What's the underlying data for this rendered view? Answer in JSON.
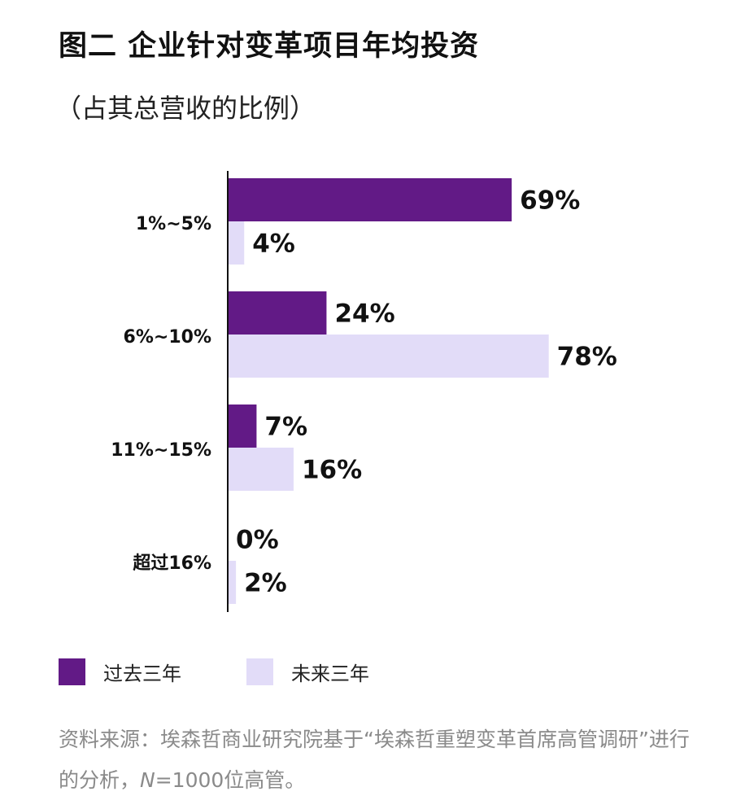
{
  "title": "图二  企业针对变革项目年均投资",
  "subtitle": "（占其总营收的比例）",
  "colors": {
    "past": "#621a86",
    "future": "#e2dcf8",
    "axis": "#111111"
  },
  "chart_data": {
    "type": "bar",
    "orientation": "horizontal",
    "categories": [
      "1%~5%",
      "6%~10%",
      "11%~15%",
      "超过16%"
    ],
    "series": [
      {
        "name": "过去三年",
        "values": [
          69,
          24,
          7,
          0
        ]
      },
      {
        "name": "未来三年",
        "values": [
          4,
          78,
          16,
          2
        ]
      }
    ],
    "value_suffix": "%",
    "xlim": [
      0,
      100
    ],
    "grid": false,
    "legend_position": "bottom-left"
  },
  "source": {
    "prefix": "资料来源：埃森哲商业研究院基于“埃森哲重塑变革首席高管调研”进行的分析，",
    "n_symbol": "N",
    "suffix": "=1000位高管。"
  }
}
